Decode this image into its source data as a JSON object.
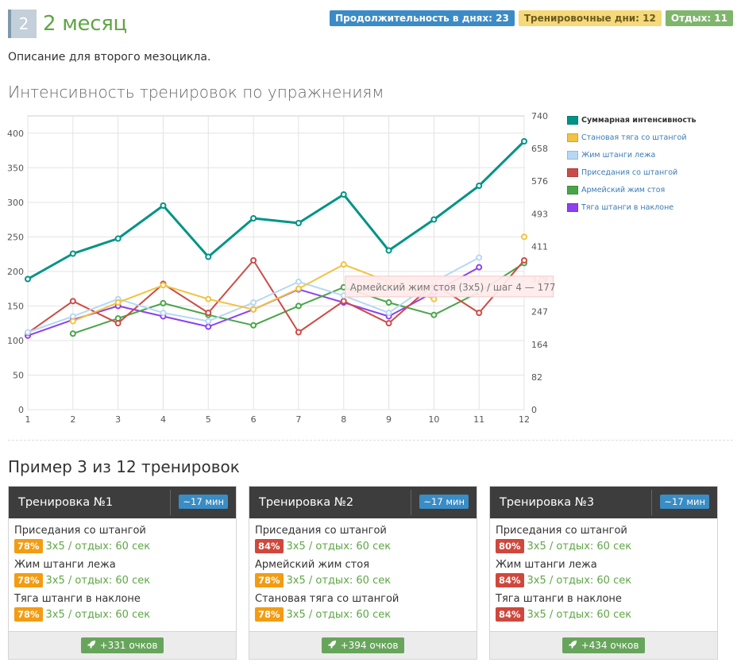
{
  "header": {
    "number": "2",
    "title": "2 месяц"
  },
  "labels": {
    "duration": "Продолжительность в днях: 23",
    "training_days": "Тренировочные дни: 12",
    "rest": "Отдых: 11"
  },
  "description": "Описание для второго мезоцикла.",
  "chart_title": "Интенсивность тренировок по упражнениям",
  "chart_data": {
    "type": "line",
    "x": [
      1,
      2,
      3,
      4,
      5,
      6,
      7,
      8,
      9,
      10,
      11,
      12
    ],
    "left_axis": {
      "ticks": [
        "0",
        "50",
        "100",
        "150",
        "200",
        "250",
        "300",
        "350",
        "400"
      ],
      "ylim": [
        0,
        425
      ]
    },
    "right_axis": {
      "ticks": [
        "0",
        "82",
        "164",
        "247",
        "329",
        "411",
        "493",
        "576",
        "658",
        "740"
      ],
      "ylim": [
        0,
        740
      ]
    },
    "series": [
      {
        "name": "Суммарная интенсивность",
        "color": "#009485",
        "axis": "right",
        "values": [
          329,
          393,
          431,
          514,
          385,
          482,
          470,
          542,
          401,
          479,
          564,
          676
        ]
      },
      {
        "name": "Становая тяга со штангой",
        "color": "#f2c240",
        "axis": "left",
        "values": [
          null,
          128,
          155,
          180,
          160,
          145,
          175,
          210,
          185,
          160,
          null,
          250
        ]
      },
      {
        "name": "Жим штанги лежа",
        "color": "#b5d8f5",
        "axis": "left",
        "values": [
          112,
          135,
          160,
          140,
          128,
          155,
          185,
          165,
          140,
          185,
          220,
          null
        ]
      },
      {
        "name": "Приседания со штангой",
        "color": "#cd4b46",
        "axis": "left",
        "values": [
          111,
          157,
          125,
          182,
          140,
          216,
          112,
          157,
          125,
          182,
          140,
          216
        ]
      },
      {
        "name": "Армейский жим стоя",
        "color": "#4aa54a",
        "axis": "left",
        "values": [
          null,
          110,
          132,
          154,
          137,
          122,
          150,
          177,
          155,
          137,
          170,
          212
        ]
      },
      {
        "name": "Тяга штанги в наклоне",
        "color": "#8e3ff0",
        "axis": "left",
        "values": [
          107,
          130,
          150,
          135,
          120,
          145,
          174,
          155,
          135,
          170,
          206,
          null
        ]
      }
    ],
    "tooltip": "Армейский жим стоя (3x5) / шаг 4 — 177"
  },
  "sample_title": "Пример 3 из 12 тренировок",
  "workouts": [
    {
      "title": "Тренировка №1",
      "time": "~17 мин",
      "points": "+331 очков",
      "exercises": [
        {
          "name": "Приседания со штангой",
          "pct": "78%",
          "level": "orange",
          "detail": "3x5 / отдых: 60 сек"
        },
        {
          "name": "Жим штанги лежа",
          "pct": "78%",
          "level": "orange",
          "detail": "3x5 / отдых: 60 сек"
        },
        {
          "name": "Тяга штанги в наклоне",
          "pct": "78%",
          "level": "orange",
          "detail": "3x5 / отдых: 60 сек"
        }
      ]
    },
    {
      "title": "Тренировка №2",
      "time": "~17 мин",
      "points": "+394 очков",
      "exercises": [
        {
          "name": "Приседания со штангой",
          "pct": "84%",
          "level": "red",
          "detail": "3x5 / отдых: 60 сек"
        },
        {
          "name": "Армейский жим стоя",
          "pct": "78%",
          "level": "orange",
          "detail": "3x5 / отдых: 60 сек"
        },
        {
          "name": "Становая тяга со штангой",
          "pct": "78%",
          "level": "orange",
          "detail": "3x5 / отдых: 60 сек"
        }
      ]
    },
    {
      "title": "Тренировка №3",
      "time": "~17 мин",
      "points": "+434 очков",
      "exercises": [
        {
          "name": "Приседания со штангой",
          "pct": "80%",
          "level": "red",
          "detail": "3x5 / отдых: 60 сек"
        },
        {
          "name": "Жим штанги лежа",
          "pct": "84%",
          "level": "red",
          "detail": "3x5 / отдых: 60 сек"
        },
        {
          "name": "Тяга штанги в наклоне",
          "pct": "84%",
          "level": "red",
          "detail": "3x5 / отдых: 60 сек"
        }
      ]
    }
  ]
}
